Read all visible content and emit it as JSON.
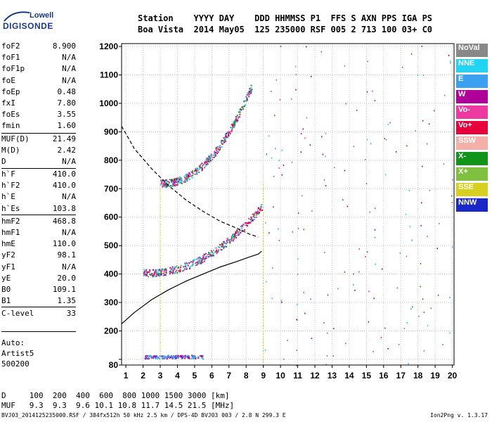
{
  "header": {
    "line1": "Station    YYYY DAY    DDD HHMMSS P1  FFS S AXN PPS IGA PS",
    "line2": "Boa Vista  2014 May05  125 235000 RSF 005 2 713 100 03+ C0"
  },
  "logo": {
    "top": "Lowell",
    "bottom": "DIGISONDE"
  },
  "params_a": [
    {
      "label": "foF2",
      "value": "8.900"
    },
    {
      "label": "foF1",
      "value": "N/A"
    },
    {
      "label": "foF1p",
      "value": "N/A"
    },
    {
      "label": "foE",
      "value": "N/A"
    },
    {
      "label": "foEp",
      "value": "0.48"
    },
    {
      "label": "fxI",
      "value": "7.80"
    },
    {
      "label": "foEs",
      "value": "3.55"
    },
    {
      "label": "fmin",
      "value": "1.60"
    }
  ],
  "params_b": [
    {
      "label": "MUF(D)",
      "value": "21.49"
    },
    {
      "label": "M(D)",
      "value": "2.42"
    },
    {
      "label": "D",
      "value": "N/A"
    }
  ],
  "params_c": [
    {
      "label": "h`F",
      "value": "410.0"
    },
    {
      "label": "h`F2",
      "value": "410.0"
    },
    {
      "label": "h`E",
      "value": "N/A"
    },
    {
      "label": "h`Es",
      "value": "103.8"
    }
  ],
  "params_d": [
    {
      "label": "hmF2",
      "value": "468.8"
    },
    {
      "label": "hmF1",
      "value": "N/A"
    },
    {
      "label": "hmE",
      "value": "110.0"
    },
    {
      "label": "yF2",
      "value": "98.1"
    },
    {
      "label": "yF1",
      "value": "N/A"
    },
    {
      "label": "yE",
      "value": "20.0"
    },
    {
      "label": "B0",
      "value": "109.1"
    },
    {
      "label": "B1",
      "value": "1.35"
    }
  ],
  "params_e": [
    {
      "label": "C-level",
      "value": "33"
    }
  ],
  "auto": [
    "Auto:",
    "Artist5",
    "500200"
  ],
  "distance_table": {
    "line1": "D     100  200  400  600  800 1000 1500 3000 [km]",
    "line2": "MUF   9.3  9.3  9.6 10.1 10.8 11.7 14.5 21.5 [MHz]"
  },
  "footer": "BVJ03_2014125235000.RSF / 384fx512h 50 kHz 2.5 km / DPS-4D BVJ03 003 / 2.8 N 299.3 E",
  "version": "Ion2Png v. 1.3.17",
  "legend": [
    {
      "label": "NoVal",
      "color": "#888888"
    },
    {
      "label": "NNE",
      "color": "#22d4f4"
    },
    {
      "label": "E",
      "color": "#3aa0f0"
    },
    {
      "label": "W",
      "color": "#b0009a"
    },
    {
      "label": "Vo-",
      "color": "#ee3aa0"
    },
    {
      "label": "Vo+",
      "color": "#e8003a"
    },
    {
      "label": "SSW",
      "color": "#f4b0a8"
    },
    {
      "label": "X-",
      "color": "#10941a"
    },
    {
      "label": "X+",
      "color": "#80c040"
    },
    {
      "label": "SSE",
      "color": "#d8d020"
    },
    {
      "label": "NNW",
      "color": "#1a28c8"
    }
  ],
  "chart_data": {
    "type": "scatter",
    "xlim": [
      0.75,
      20.1
    ],
    "ylim": [
      80,
      1210
    ],
    "x_ticks": [
      1,
      2,
      3,
      4,
      5,
      6,
      7,
      8,
      9,
      10,
      11,
      12,
      13,
      14,
      15,
      16,
      17,
      18,
      19,
      20
    ],
    "y_ticks": [
      80,
      100,
      200,
      300,
      400,
      500,
      600,
      700,
      800,
      900,
      1000,
      1100,
      1200
    ],
    "y_tick_labels": [
      "80",
      "",
      "200",
      "300",
      "400",
      "500",
      "600",
      "700",
      "800",
      "900",
      "1000",
      "1100",
      "1200"
    ],
    "grid": true,
    "markers": [
      {
        "x": 3.0,
        "color": "#d8d020"
      },
      {
        "x": 9.0,
        "color": "#d8d020"
      }
    ],
    "traces": [
      {
        "name": "F2 first-hop",
        "x_start": 2.0,
        "x_end": 8.9,
        "h_start": 405,
        "h_end": 640,
        "curve": "ramp"
      },
      {
        "name": "F2 second-hop",
        "x_start": 3.0,
        "x_end": 8.3,
        "h_start": 720,
        "h_end": 1060,
        "curve": "ramp"
      },
      {
        "name": "Es",
        "x_start": 2.0,
        "x_end": 5.5,
        "h_start": 110,
        "h_end": 110,
        "curve": "flat"
      }
    ],
    "profile_solid": [
      [
        0.75,
        225
      ],
      [
        1.5,
        265
      ],
      [
        2.5,
        310
      ],
      [
        3.5,
        345
      ],
      [
        4.5,
        375
      ],
      [
        5.5,
        400
      ],
      [
        6.5,
        425
      ],
      [
        7.5,
        445
      ],
      [
        8.2,
        460
      ],
      [
        8.7,
        470
      ],
      [
        8.9,
        480
      ]
    ],
    "profile_dashed": [
      [
        0.75,
        920
      ],
      [
        1.5,
        840
      ],
      [
        2.5,
        770
      ],
      [
        3.5,
        710
      ],
      [
        4.5,
        660
      ],
      [
        5.5,
        620
      ],
      [
        6.5,
        585
      ],
      [
        7.5,
        560
      ],
      [
        8.2,
        540
      ],
      [
        8.7,
        530
      ]
    ]
  }
}
